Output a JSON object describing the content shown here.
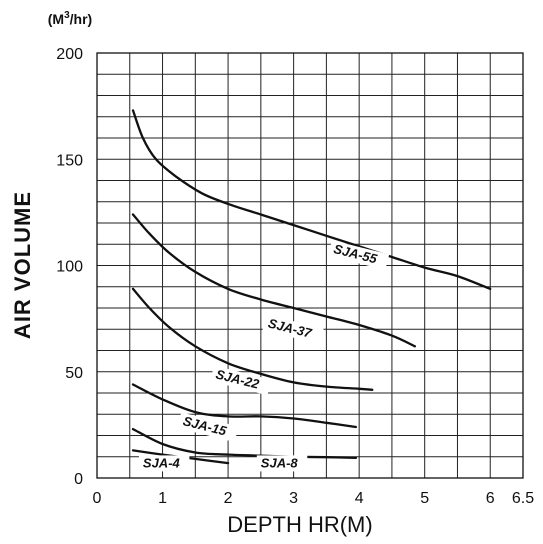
{
  "chart_data": {
    "type": "line",
    "unit_label": "(M3/hr)",
    "ylabel": "AIR  VOLUME",
    "xlabel": "DEPTH HR(M)",
    "xlim": [
      0,
      6.5
    ],
    "ylim": [
      0,
      200
    ],
    "x_ticks": [
      "0",
      "1",
      "2",
      "3",
      "4",
      "5",
      "6",
      "6.5"
    ],
    "x_tick_values": [
      0,
      1,
      2,
      3,
      4,
      5,
      6,
      6.5
    ],
    "y_ticks": [
      "0",
      "50",
      "100",
      "150",
      "200"
    ],
    "y_tick_values": [
      0,
      50,
      100,
      150,
      200
    ],
    "grid": true,
    "series": [
      {
        "name": "SJA-55",
        "points": [
          [
            0.55,
            173
          ],
          [
            0.7,
            160
          ],
          [
            0.9,
            150
          ],
          [
            1.2,
            142
          ],
          [
            1.6,
            134
          ],
          [
            2.0,
            129
          ],
          [
            2.5,
            124
          ],
          [
            3.0,
            119
          ],
          [
            3.5,
            114
          ],
          [
            4.0,
            109
          ],
          [
            4.5,
            104
          ],
          [
            5.0,
            99
          ],
          [
            5.5,
            95
          ],
          [
            6.0,
            89
          ]
        ]
      },
      {
        "name": "SJA-37",
        "points": [
          [
            0.55,
            124
          ],
          [
            0.8,
            115
          ],
          [
            1.1,
            106
          ],
          [
            1.5,
            97
          ],
          [
            2.0,
            89
          ],
          [
            2.5,
            84
          ],
          [
            3.0,
            80
          ],
          [
            3.5,
            76
          ],
          [
            4.0,
            72
          ],
          [
            4.5,
            67
          ],
          [
            4.85,
            62
          ]
        ]
      },
      {
        "name": "SJA-22",
        "points": [
          [
            0.55,
            89
          ],
          [
            0.8,
            80
          ],
          [
            1.1,
            71
          ],
          [
            1.5,
            62
          ],
          [
            2.0,
            54
          ],
          [
            2.5,
            49
          ],
          [
            3.0,
            45
          ],
          [
            3.5,
            43
          ],
          [
            4.0,
            42
          ],
          [
            4.2,
            41.5
          ]
        ]
      },
      {
        "name": "SJA-15",
        "points": [
          [
            0.55,
            44
          ],
          [
            1.0,
            37
          ],
          [
            1.5,
            31
          ],
          [
            2.0,
            29
          ],
          [
            2.5,
            29
          ],
          [
            3.0,
            28
          ],
          [
            3.5,
            26
          ],
          [
            3.95,
            24
          ]
        ]
      },
      {
        "name": "SJA-8",
        "points": [
          [
            0.55,
            23
          ],
          [
            1.0,
            16
          ],
          [
            1.5,
            12
          ],
          [
            2.0,
            11
          ],
          [
            2.5,
            10.5
          ],
          [
            3.0,
            10
          ],
          [
            3.5,
            9.8
          ],
          [
            3.95,
            9.5
          ]
        ]
      },
      {
        "name": "SJA-4",
        "points": [
          [
            0.55,
            13
          ],
          [
            1.0,
            11
          ],
          [
            1.5,
            9
          ],
          [
            2.0,
            7
          ]
        ]
      }
    ],
    "curve_labels": [
      {
        "text": "SJA-55",
        "x": 3.6,
        "y": 106,
        "angle": 14
      },
      {
        "text": "SJA-37",
        "x": 2.6,
        "y": 71,
        "angle": 14
      },
      {
        "text": "SJA-22",
        "x": 1.8,
        "y": 47,
        "angle": 14
      },
      {
        "text": "SJA-15",
        "x": 1.3,
        "y": 25,
        "angle": 14
      },
      {
        "text": "SJA-8",
        "x": 2.5,
        "y": 5,
        "angle": 0
      },
      {
        "text": "SJA-4",
        "x": 0.7,
        "y": 5,
        "angle": 0
      }
    ]
  }
}
